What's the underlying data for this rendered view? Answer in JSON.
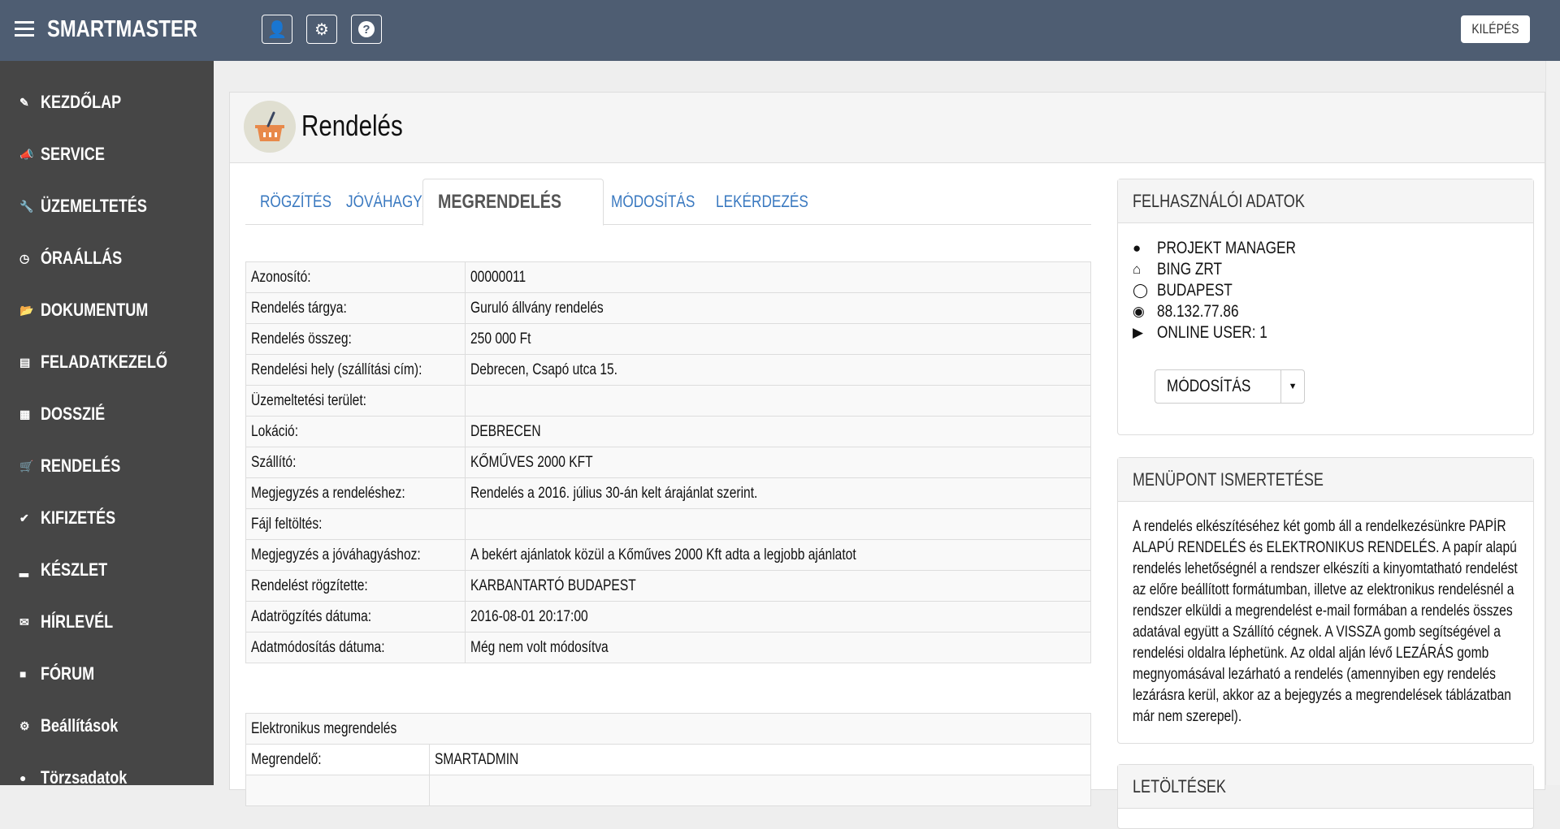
{
  "topbar": {
    "brand": "SMARTMASTER",
    "logout": "KILÉPÉS",
    "icons": [
      "user-icon",
      "gear-icon",
      "question-icon"
    ]
  },
  "sidebar": {
    "items": [
      {
        "label": "KEZDŐLAP",
        "icon": "edit-icon"
      },
      {
        "label": "SERVICE",
        "icon": "bullhorn-icon"
      },
      {
        "label": "ÜZEMELTETÉS",
        "icon": "wrench-icon"
      },
      {
        "label": "ÓRAÁLLÁS",
        "icon": "clock-icon"
      },
      {
        "label": "DOKUMENTUM",
        "icon": "folder-icon"
      },
      {
        "label": "FELADATKEZELŐ",
        "icon": "calendar-icon"
      },
      {
        "label": "DOSSZIÉ",
        "icon": "grid-icon"
      },
      {
        "label": "RENDELÉS",
        "icon": "cart-icon"
      },
      {
        "label": "KIFIZETÉS",
        "icon": "check-circle-icon"
      },
      {
        "label": "KÉSZLET",
        "icon": "bar-chart-icon"
      },
      {
        "label": "HÍRLEVÉL",
        "icon": "envelope-icon"
      },
      {
        "label": "FÓRUM",
        "icon": "comment-icon"
      },
      {
        "label": "Beállítások",
        "icon": "gear-icon"
      },
      {
        "label": "Törzsadatok",
        "icon": "user-icon"
      }
    ]
  },
  "page": {
    "title": "Rendelés",
    "icon": "basket-icon"
  },
  "tabs": [
    {
      "label": "RÖGZÍTÉS"
    },
    {
      "label": "JÓVÁHAGYÁS"
    },
    {
      "label": "MEGRENDELÉS",
      "active": true
    },
    {
      "label": "MÓDOSÍTÁS"
    },
    {
      "label": "LEKÉRDEZÉS"
    }
  ],
  "details": [
    [
      "Azonosító:",
      "00000011"
    ],
    [
      "Rendelés tárgya:",
      "Guruló állvány rendelés"
    ],
    [
      "Rendelés összeg:",
      "250 000 Ft"
    ],
    [
      "Rendelési hely (szállítási cím):",
      "Debrecen, Csapó utca 15."
    ],
    [
      "Üzemeltetési terület:",
      ""
    ],
    [
      "Lokáció:",
      "DEBRECEN"
    ],
    [
      "Szállító:",
      "KŐMŰVES 2000 KFT"
    ],
    [
      "Megjegyzés a rendeléshez:",
      "Rendelés a 2016. július 30-án kelt árajánlat szerint."
    ],
    [
      "Fájl feltöltés:",
      ""
    ],
    [
      "Megjegyzés a jóváhagyáshoz:",
      "A bekért ajánlatok közül a Kőműves 2000 Kft adta a legjobb ajánlatot"
    ],
    [
      "Rendelést rögzítette:",
      "KARBANTARTÓ BUDAPEST"
    ],
    [
      "Adatrögzítés dátuma:",
      "2016-08-01 20:17:00"
    ],
    [
      "Adatmódosítás dátuma:",
      "Még nem volt módosítva"
    ]
  ],
  "electronic": {
    "title": "Elektronikus megrendelés",
    "rows": [
      [
        "Megrendelő:",
        "SMARTADMIN"
      ]
    ]
  },
  "user_panel": {
    "title": "FELHASZNÁLÓI ADATOK",
    "rows": [
      {
        "icon": "user-icon",
        "text": "PROJEKT MANAGER"
      },
      {
        "icon": "home-icon",
        "text": "BING ZRT"
      },
      {
        "icon": "map-marker-icon",
        "text": "BUDAPEST"
      },
      {
        "icon": "globe-icon",
        "text": "88.132.77.86"
      },
      {
        "icon": "tags-icon",
        "text": "ONLINE USER: 1"
      }
    ],
    "button": "MÓDOSÍTÁS"
  },
  "menu_panel": {
    "title": "MENÜPONT ISMERTETÉSE",
    "text": "A rendelés elkészítéséhez két gomb áll a rendelkezésünkre PAPÍR ALAPÚ RENDELÉS és ELEKTRONIKUS RENDELÉS. A papír alapú rendelés lehetőségnél a rendszer elkészíti a kinyomtatható rendelést az előre beállított formátumban, illetve az elektronikus rendelésnél a rendszer elküldi a megrendelést e-mail formában a rendelés összes adatával együtt a Szállító cégnek. A VISSZA gomb segítségével a rendelési oldalra léphetünk. Az oldal alján lévő LEZÁRÁS gomb megnyomásával lezárható a rendelés (amennyiben egy rendelés lezárásra kerül, akkor az a bejegyzés a megrendelések táblázatban már nem szerepel)."
  },
  "downloads_panel": {
    "title": "LETÖLTÉSEK"
  },
  "colors": {
    "topbar": "#4e5d72",
    "sidebar": "#464646",
    "link": "#3a79c0"
  }
}
